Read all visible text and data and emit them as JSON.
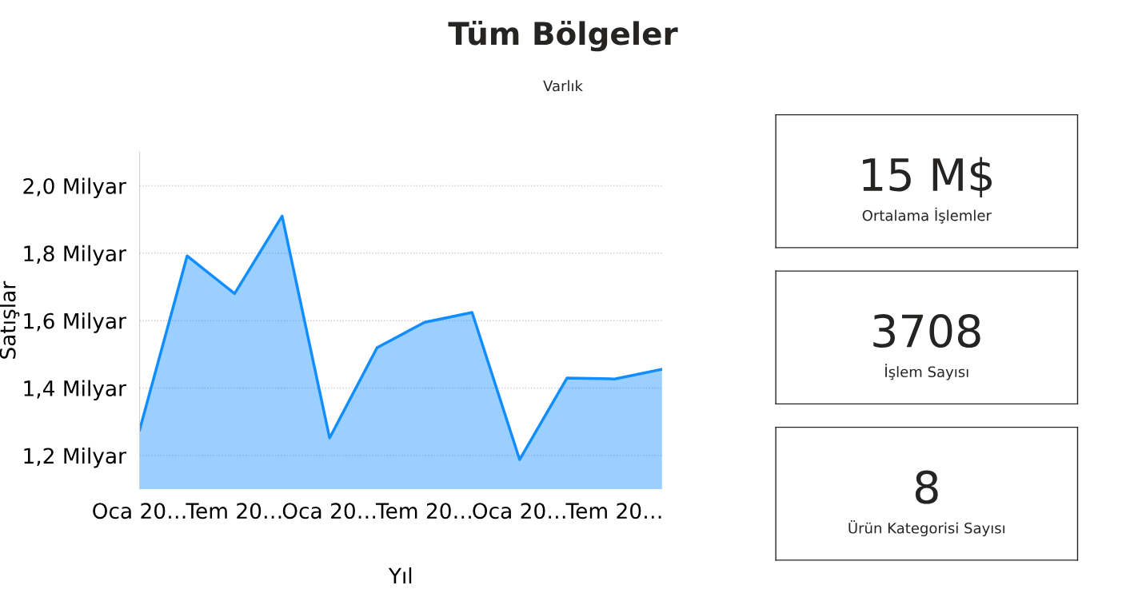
{
  "chart_data": [
    {
      "type": "area",
      "title": "Tüm Bölgeler",
      "subtitle": "Varlık",
      "xlabel": "Yıl",
      "ylabel": "Satışlar",
      "categories": [
        "Oca 20…",
        null,
        "Tem 20…",
        null,
        "Oca 20…",
        null,
        "Tem 20…",
        null,
        "Oca 20…",
        null,
        "Tem 20…",
        null
      ],
      "series": [
        {
          "color": "#118dff",
          "values": [
            1.276,
            1.792,
            1.68,
            1.91,
            1.252,
            1.52,
            1.595,
            1.624,
            1.188,
            1.43,
            1.427,
            1.456
          ]
        }
      ],
      "ylim": [
        1.1,
        2.1
      ],
      "yticks": [
        {
          "value": 1.2,
          "label": "1,2 Milyar"
        },
        {
          "value": 1.4,
          "label": "1,4 Milyar"
        },
        {
          "value": 1.6,
          "label": "1,6 Milyar"
        },
        {
          "value": 1.8,
          "label": "1,8 Milyar"
        },
        {
          "value": 2.0,
          "label": "2,0 Milyar"
        }
      ],
      "grid": "y",
      "line_style": "solid",
      "marker": "none"
    },
    {
      "type": "other",
      "annotations": [
        "15 M$",
        "Ortalama İşlemler"
      ]
    },
    {
      "type": "other",
      "annotations": [
        "3708",
        "İşlem Sayısı"
      ]
    },
    {
      "type": "other",
      "annotations": [
        "8",
        "Ürün Kategorisi Sayısı"
      ]
    }
  ]
}
